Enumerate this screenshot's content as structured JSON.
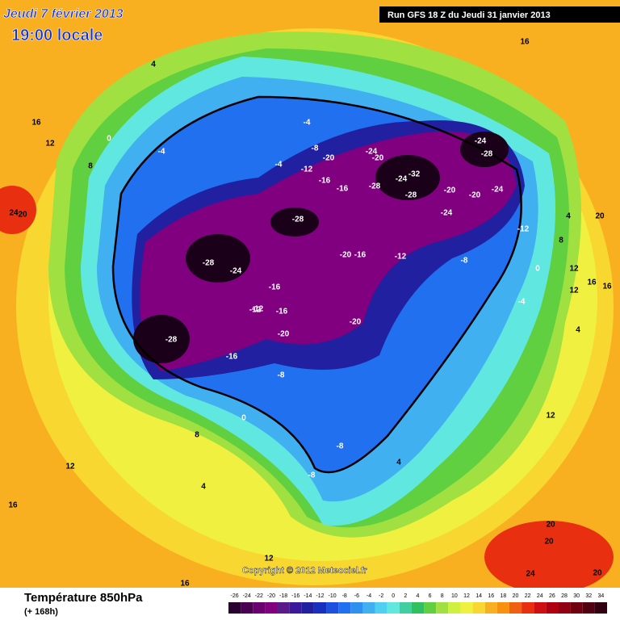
{
  "header": {
    "date": "Jeudi 7 février 2013",
    "time": "19:00 locale",
    "run": "Run GFS 18 Z du Jeudi 31 janvier 2013"
  },
  "copyright": "Copyright © 2012 Meteociel.fr",
  "footer": {
    "title": "Température 850hPa",
    "lead": "(+ 168h)"
  },
  "map": {
    "contour_labels": [
      "16",
      "4",
      "16",
      "12",
      "8",
      "0",
      "24",
      "20",
      "-4",
      "-4",
      "-8",
      "-4",
      "-12",
      "-20",
      "-16",
      "-16",
      "-24",
      "-20",
      "-32",
      "-28",
      "-24",
      "-28",
      "-20",
      "-24",
      "-28",
      "-24",
      "-20",
      "-24",
      "-12",
      "-28",
      "-24",
      "-28",
      "-20",
      "-16",
      "-12",
      "-16",
      "-12",
      "-16",
      "-20",
      "-16",
      "-28",
      "-20",
      "-8",
      "-8",
      "-8",
      "-8",
      "0",
      "4",
      "8",
      "8",
      "12",
      "16",
      "4",
      "0",
      "4",
      "12",
      "12",
      "16",
      "12",
      "16",
      "20",
      "20",
      "24",
      "20",
      "20",
      "12",
      "16",
      "4",
      "-12",
      "-4"
    ]
  },
  "legend": {
    "values": [
      -26,
      -24,
      -22,
      -20,
      -18,
      -16,
      -14,
      -12,
      -10,
      -8,
      -6,
      -4,
      -2,
      0,
      2,
      4,
      6,
      8,
      10,
      12,
      14,
      16,
      18,
      20,
      22,
      24,
      26,
      28,
      30,
      32,
      34
    ],
    "colors": [
      "#2a0030",
      "#4a0050",
      "#6a0070",
      "#800080",
      "#5a1a8a",
      "#3a1a9a",
      "#2020a0",
      "#1830c0",
      "#1e50e0",
      "#2070f0",
      "#3090f0",
      "#40b0f0",
      "#50d0f0",
      "#60e8e0",
      "#40d0a0",
      "#30c060",
      "#60d040",
      "#a0e040",
      "#d0f040",
      "#f0f040",
      "#f8d830",
      "#f8b020",
      "#f89010",
      "#f06010",
      "#e83010",
      "#d01010",
      "#b00010",
      "#900010",
      "#700010",
      "#500010",
      "#300010"
    ]
  }
}
